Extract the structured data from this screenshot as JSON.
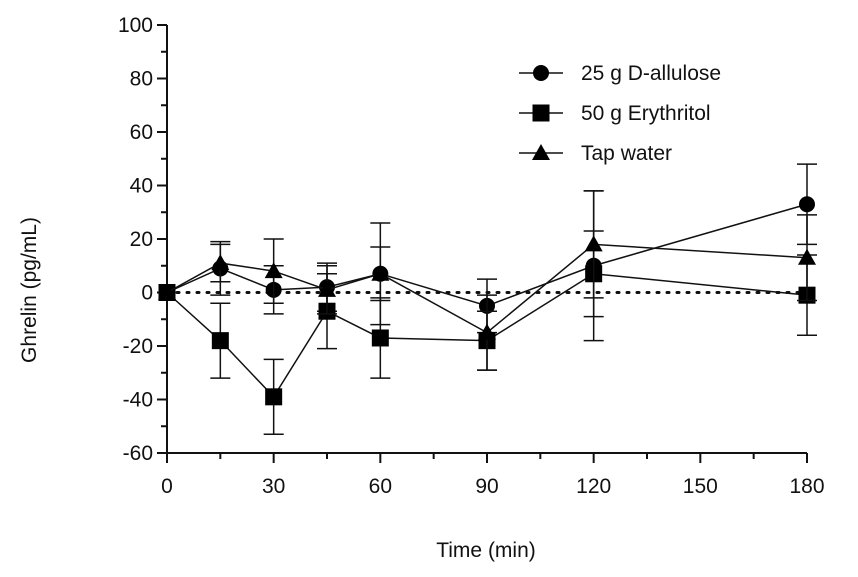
{
  "chart_data": {
    "type": "line",
    "title": "",
    "xlabel": "Time (min)",
    "ylabel": "Ghrelin (pg/mL)",
    "xlim": [
      0,
      180
    ],
    "ylim": [
      -60,
      100
    ],
    "xticks": [
      0,
      30,
      60,
      90,
      120,
      150,
      180
    ],
    "yticks": [
      -60,
      -40,
      -20,
      0,
      20,
      40,
      60,
      80,
      100
    ],
    "x_tick_labels": [
      "0",
      "30",
      "60",
      "90",
      "120",
      "150",
      "180"
    ],
    "y_tick_labels": [
      "-60",
      "-40",
      "-20",
      "0",
      "20",
      "40",
      "60",
      "80",
      "100"
    ],
    "reference_line": {
      "y": 0,
      "style": "dotted"
    },
    "grid": false,
    "legend_position": "top-right",
    "series": [
      {
        "name": "25 g D-allulose",
        "marker": "circle",
        "x": [
          0,
          15,
          30,
          45,
          60,
          90,
          120,
          180
        ],
        "y": [
          0,
          9,
          1,
          2,
          7,
          -5,
          10,
          33
        ],
        "error": [
          0,
          10,
          9,
          9,
          19,
          10,
          28,
          15
        ]
      },
      {
        "name": "50 g Erythritol",
        "marker": "square",
        "x": [
          0,
          15,
          30,
          45,
          60,
          90,
          120,
          180
        ],
        "y": [
          0,
          -18,
          -39,
          -7,
          -17,
          -18,
          7,
          -1
        ],
        "error": [
          0,
          14,
          14,
          14,
          15,
          11,
          16,
          15
        ]
      },
      {
        "name": "Tap water",
        "marker": "triangle",
        "x": [
          0,
          15,
          30,
          45,
          60,
          90,
          120,
          180
        ],
        "y": [
          0,
          11,
          8,
          1,
          7,
          -15,
          18,
          13
        ],
        "error": [
          0,
          7,
          12,
          9,
          10,
          14,
          20,
          16
        ]
      }
    ],
    "colors": {
      "line": "#111111",
      "marker": "#000000"
    }
  }
}
